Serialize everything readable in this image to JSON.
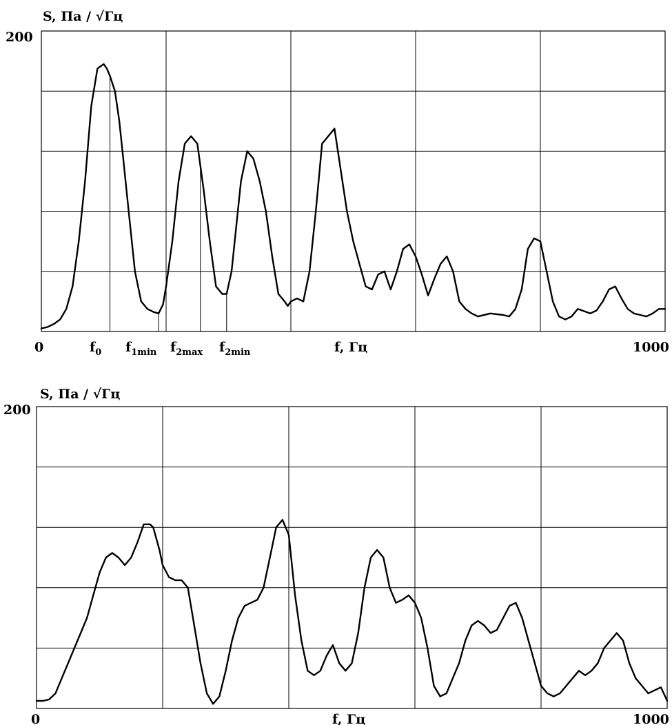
{
  "chart_data": [
    {
      "type": "line",
      "title": "",
      "ylabel": "S, Па / √Гц",
      "xlabel": "f, Гц",
      "ylim": [
        0,
        200
      ],
      "xlim": [
        0,
        1000
      ],
      "ytick_labels": [
        "200"
      ],
      "xtick_labels": [
        "0",
        "1000"
      ],
      "grid": true,
      "markers": [
        {
          "label": "f",
          "sub": "0",
          "x": 110
        },
        {
          "label": "f",
          "sub": "1min",
          "x": 188
        },
        {
          "label": "f",
          "sub": "2max",
          "x": 255
        },
        {
          "label": "f",
          "sub": "2min",
          "x": 297
        }
      ],
      "extra_vline_x": 200,
      "series": [
        {
          "x": [
            0,
            10,
            20,
            30,
            40,
            50,
            60,
            70,
            80,
            90,
            100,
            105,
            110,
            118,
            125,
            130,
            140,
            150,
            160,
            170,
            180,
            188,
            195,
            200,
            210,
            220,
            230,
            240,
            250,
            255,
            260,
            270,
            280,
            290,
            297,
            305,
            320,
            330,
            340,
            350,
            360,
            370,
            380,
            390,
            395,
            400,
            410,
            420,
            430,
            440,
            450,
            470,
            490,
            500,
            510,
            520,
            530,
            540,
            550,
            560,
            570,
            580,
            590,
            600,
            610,
            620,
            630,
            640,
            650,
            660,
            670,
            680,
            690,
            700,
            720,
            740,
            750,
            760,
            770,
            780,
            790,
            800,
            810,
            820,
            830,
            840,
            850,
            860,
            880,
            890,
            900,
            910,
            920,
            930,
            940,
            950,
            960,
            970,
            980,
            990,
            1000
          ],
          "y": [
            2,
            3,
            5,
            8,
            15,
            30,
            60,
            100,
            150,
            175,
            178,
            175,
            170,
            160,
            140,
            120,
            80,
            40,
            20,
            15,
            13,
            12,
            18,
            30,
            60,
            100,
            125,
            130,
            125,
            110,
            95,
            60,
            30,
            25,
            25,
            40,
            100,
            120,
            115,
            100,
            80,
            50,
            25,
            20,
            17,
            20,
            22,
            20,
            40,
            80,
            125,
            135,
            80,
            60,
            45,
            30,
            28,
            38,
            40,
            28,
            40,
            55,
            58,
            50,
            38,
            24,
            35,
            45,
            50,
            40,
            20,
            15,
            12,
            10,
            12,
            11,
            10,
            15,
            28,
            55,
            62,
            60,
            40,
            20,
            10,
            8,
            10,
            15,
            12,
            14,
            20,
            28,
            30,
            22,
            15,
            12,
            11,
            10,
            12,
            15,
            15
          ],
          "color": "#000000"
        }
      ]
    },
    {
      "type": "line",
      "title": "",
      "ylabel": "S, Па / √Гц",
      "xlabel": "f, Гц",
      "ylim": [
        0,
        200
      ],
      "xlim": [
        0,
        1000
      ],
      "ytick_labels": [
        "200"
      ],
      "xtick_labels": [
        "0",
        "1000"
      ],
      "grid": true,
      "series": [
        {
          "x": [
            0,
            10,
            20,
            30,
            40,
            50,
            60,
            70,
            80,
            90,
            100,
            110,
            120,
            130,
            140,
            150,
            160,
            170,
            180,
            185,
            195,
            200,
            210,
            220,
            230,
            240,
            250,
            260,
            270,
            280,
            290,
            300,
            310,
            320,
            330,
            340,
            350,
            360,
            370,
            380,
            390,
            400,
            405,
            410,
            420,
            430,
            440,
            450,
            460,
            470,
            480,
            490,
            500,
            510,
            520,
            530,
            540,
            550,
            560,
            570,
            580,
            590,
            600,
            610,
            620,
            630,
            640,
            650,
            660,
            670,
            680,
            690,
            700,
            710,
            720,
            730,
            740,
            750,
            760,
            770,
            780,
            790,
            800,
            810,
            820,
            830,
            840,
            850,
            860,
            870,
            880,
            890,
            900,
            910,
            920,
            930,
            940,
            950,
            960,
            970,
            980,
            990,
            1000
          ],
          "y": [
            5,
            5,
            6,
            10,
            20,
            30,
            40,
            50,
            60,
            75,
            90,
            100,
            103,
            100,
            95,
            100,
            110,
            122,
            122,
            120,
            105,
            95,
            87,
            85,
            85,
            80,
            55,
            30,
            10,
            3,
            8,
            25,
            45,
            60,
            68,
            70,
            72,
            80,
            100,
            120,
            125,
            115,
            95,
            75,
            45,
            25,
            22,
            25,
            35,
            42,
            30,
            25,
            30,
            50,
            80,
            100,
            105,
            100,
            80,
            70,
            72,
            75,
            70,
            60,
            40,
            15,
            8,
            10,
            20,
            30,
            45,
            55,
            58,
            55,
            50,
            52,
            60,
            68,
            70,
            60,
            45,
            30,
            15,
            10,
            8,
            10,
            15,
            20,
            25,
            22,
            25,
            30,
            40,
            45,
            50,
            45,
            30,
            20,
            15,
            10,
            12,
            14,
            5
          ],
          "color": "#000000"
        }
      ]
    }
  ]
}
